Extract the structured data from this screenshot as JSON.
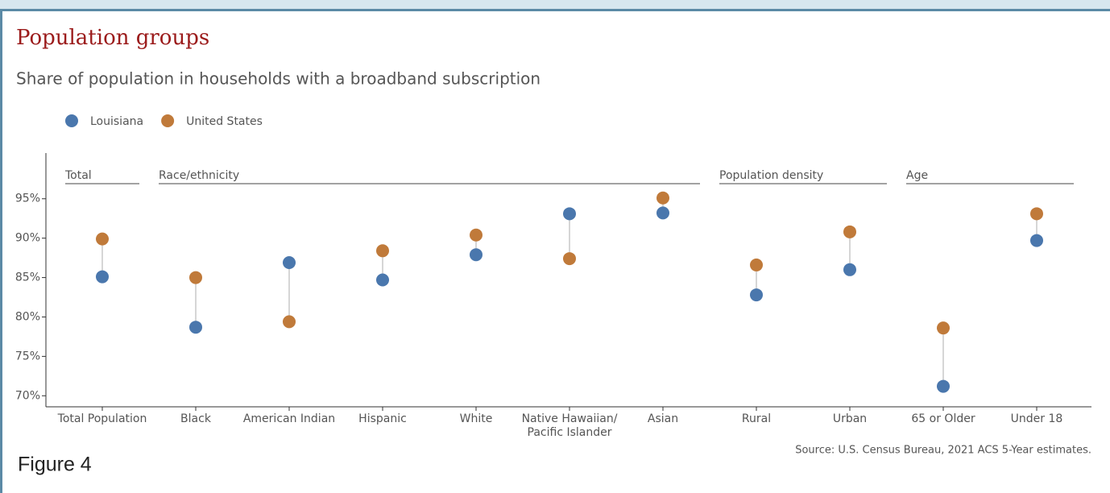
{
  "chart_data": {
    "type": "dumbbell",
    "title": "Population groups",
    "subtitle": "Share of population in households with a broadband subscription",
    "categories": [
      "Total Population",
      "Black",
      "American Indian",
      "Hispanic",
      "White",
      "Native Hawaiian/\nPacific Islander",
      "Asian",
      "Rural",
      "Urban",
      "65 or Older",
      "Under 18"
    ],
    "groups": [
      {
        "name": "Total",
        "count": 1
      },
      {
        "name": "Race/ethnicity",
        "count": 6
      },
      {
        "name": "Population density",
        "count": 2
      },
      {
        "name": "Age",
        "count": 2
      }
    ],
    "series": [
      {
        "name": "Louisiana",
        "color": "#4a77ad",
        "values": [
          85.1,
          78.7,
          86.9,
          84.7,
          87.9,
          93.1,
          93.2,
          82.8,
          86.0,
          71.2,
          89.7
        ]
      },
      {
        "name": "United States",
        "color": "#c07a3a",
        "values": [
          89.9,
          85.0,
          79.4,
          88.4,
          90.4,
          87.4,
          95.1,
          86.6,
          90.8,
          78.6,
          93.1
        ]
      }
    ],
    "ylim": [
      68.6,
      100.8
    ],
    "yticks": [
      {
        "value": 70,
        "label": "70%"
      },
      {
        "value": 75,
        "label": "75%"
      },
      {
        "value": 80,
        "label": "80%"
      },
      {
        "value": 85,
        "label": "85%"
      },
      {
        "value": 90,
        "label": "90%"
      },
      {
        "value": 95,
        "label": "95%"
      }
    ],
    "source": "Source: U.S. Census Bureau, 2021 ACS 5-Year estimates.",
    "caption": "Figure 4"
  }
}
